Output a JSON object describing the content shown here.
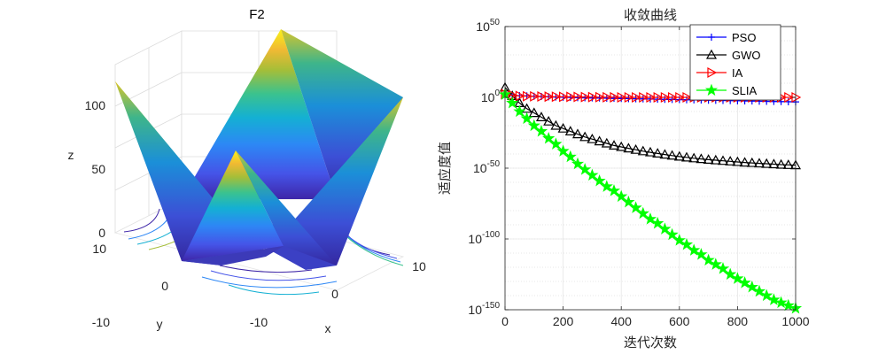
{
  "chart_data": [
    {
      "type": "surface3d",
      "title": "F2",
      "xlabel": "x",
      "ylabel": "y",
      "zlabel": "z",
      "xlim": [
        -10,
        10
      ],
      "ylim": [
        -10,
        10
      ],
      "zlim": [
        0,
        120
      ],
      "xticks": [
        "-10",
        "0",
        "10"
      ],
      "yticks": [
        "-10",
        "0",
        "10"
      ],
      "zticks": [
        "0",
        "50",
        "100"
      ],
      "colormap": "parula",
      "grid": true
    },
    {
      "type": "line",
      "title": "收敛曲线",
      "xlabel": "迭代次数",
      "ylabel": "适应度值",
      "xlim": [
        0,
        1000
      ],
      "ylim_log10": [
        -150,
        50
      ],
      "yscale": "log",
      "xticks": [
        "0",
        "200",
        "400",
        "600",
        "800",
        "1000"
      ],
      "yticks": [
        {
          "base": "10",
          "exp": "50"
        },
        {
          "base": "10",
          "exp": "0"
        },
        {
          "base": "10",
          "exp": "-50"
        },
        {
          "base": "10",
          "exp": "-100"
        },
        {
          "base": "10",
          "exp": "-150"
        }
      ],
      "grid": true,
      "legend_position": "top-right",
      "x": [
        0,
        25,
        50,
        75,
        100,
        125,
        150,
        175,
        200,
        225,
        250,
        275,
        300,
        325,
        350,
        375,
        400,
        425,
        450,
        475,
        500,
        525,
        550,
        575,
        600,
        625,
        650,
        675,
        700,
        725,
        750,
        775,
        800,
        825,
        850,
        875,
        900,
        925,
        950,
        975,
        1000
      ],
      "series": [
        {
          "name": "PSO",
          "color": "#0000ff",
          "marker": "plus",
          "log10_values": [
            2,
            1.5,
            1.2,
            1.0,
            0.8,
            0.6,
            0.4,
            0.2,
            0.1,
            0,
            -0.2,
            -0.3,
            -0.4,
            -0.5,
            -0.6,
            -0.7,
            -0.8,
            -0.9,
            -1.0,
            -1.1,
            -1.2,
            -1.3,
            -1.4,
            -1.5,
            -1.6,
            -1.7,
            -1.8,
            -1.9,
            -2.0,
            -2.1,
            -2.2,
            -2.3,
            -2.4,
            -2.5,
            -2.6,
            -2.7,
            -2.8,
            -2.9,
            -3.0,
            -3.1,
            -3.2
          ]
        },
        {
          "name": "GWO",
          "color": "#000000",
          "marker": "triangle",
          "log10_values": [
            7,
            1,
            -4,
            -8,
            -11,
            -14,
            -17,
            -20,
            -22,
            -24,
            -26,
            -28,
            -29.5,
            -31,
            -32.5,
            -34,
            -35,
            -36,
            -37,
            -38,
            -38.8,
            -39.6,
            -40.4,
            -41.1,
            -41.8,
            -42.4,
            -43,
            -43.5,
            -44,
            -44.4,
            -44.8,
            -45.2,
            -45.6,
            -46,
            -46.3,
            -46.6,
            -46.9,
            -47.2,
            -47.5,
            -47.7,
            -47.9
          ]
        },
        {
          "name": "IA",
          "color": "#ff0000",
          "marker": "triangle-right",
          "log10_values": [
            2.3,
            1.5,
            1.0,
            0.8,
            0.7,
            0.6,
            0.5,
            0.45,
            0.4,
            0.35,
            0.3,
            0.25,
            0.2,
            0.15,
            0.1,
            0.05,
            0,
            0,
            0,
            0,
            0,
            0,
            0,
            0,
            0,
            0,
            0,
            0,
            0,
            0,
            0,
            0,
            0,
            0,
            0,
            0,
            0,
            0,
            0,
            0,
            0
          ]
        },
        {
          "name": "SLIA",
          "color": "#00ff00",
          "marker": "star",
          "log10_values": [
            2,
            -4,
            -10,
            -15,
            -20,
            -24,
            -29,
            -33,
            -38,
            -42,
            -47,
            -51,
            -55,
            -59,
            -63,
            -66,
            -70,
            -74,
            -78,
            -82,
            -86,
            -89,
            -93,
            -97,
            -101,
            -104,
            -108,
            -111,
            -115,
            -118,
            -121,
            -125,
            -128,
            -131,
            -134,
            -137,
            -140,
            -143,
            -145,
            -147,
            -149
          ]
        }
      ]
    }
  ]
}
